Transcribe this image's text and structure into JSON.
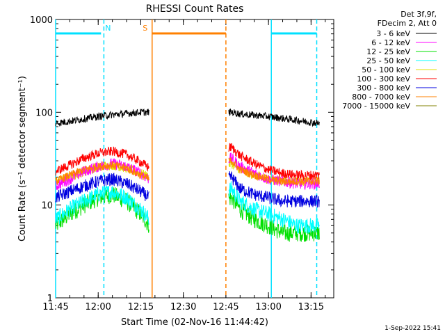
{
  "chart_data": {
    "type": "line",
    "title": "RHESSI Count Rates",
    "xlabel": "Start Time (02-Nov-16 11:44:42)",
    "ylabel": "Count Rate (s⁻¹ detector segment⁻¹)",
    "yscale": "log",
    "ylim": [
      1,
      1000
    ],
    "xlim": [
      "11:45",
      "13:23"
    ],
    "x_ticks": [
      "11:45",
      "12:00",
      "12:15",
      "12:30",
      "12:45",
      "13:00",
      "13:15"
    ],
    "y_ticks": [
      "1",
      "10",
      "100",
      "1000"
    ],
    "legend_header": [
      "Det 3f,9f,",
      "FDecim 2, Att 0"
    ],
    "legend_position": "top-right outside",
    "timestamp": "1-Sep-2022 15:41",
    "data_gap": [
      "12:19",
      "12:46"
    ],
    "series": [
      {
        "name": "3 - 6 keV",
        "color": "#000000",
        "x": [
          "11:45",
          "11:50",
          "11:55",
          "12:00",
          "12:05",
          "12:10",
          "12:15",
          "12:18",
          "12:47",
          "12:50",
          "12:55",
          "13:00",
          "13:05",
          "13:10",
          "13:15",
          "13:18"
        ],
        "values": [
          76,
          80,
          85,
          90,
          94,
          97,
          100,
          100,
          100,
          96,
          93,
          90,
          86,
          82,
          78,
          76
        ]
      },
      {
        "name": "6 - 12 keV",
        "color": "#ff00ff",
        "x": [
          "11:45",
          "11:50",
          "11:55",
          "12:00",
          "12:05",
          "12:10",
          "12:15",
          "12:18",
          "12:47",
          "12:50",
          "12:55",
          "13:00",
          "13:05",
          "13:10",
          "13:15",
          "13:18"
        ],
        "values": [
          16,
          19,
          23,
          26,
          28,
          26,
          22,
          19,
          32,
          26,
          22,
          19,
          18,
          17,
          17,
          17
        ]
      },
      {
        "name": "12 - 25 keV",
        "color": "#00e000",
        "x": [
          "11:45",
          "11:50",
          "11:55",
          "12:00",
          "12:05",
          "12:10",
          "12:15",
          "12:18",
          "12:47",
          "12:50",
          "12:55",
          "13:00",
          "13:05",
          "13:10",
          "13:15",
          "13:18"
        ],
        "values": [
          6,
          8,
          10,
          12,
          13,
          11,
          8,
          6,
          12,
          9,
          7,
          6,
          5,
          5,
          5,
          5
        ]
      },
      {
        "name": "25 - 50 keV",
        "color": "#00ffff",
        "x": [
          "11:45",
          "11:50",
          "11:55",
          "12:00",
          "12:05",
          "12:10",
          "12:15",
          "12:18",
          "12:47",
          "12:50",
          "12:55",
          "13:00",
          "13:05",
          "13:10",
          "13:15",
          "13:18"
        ],
        "values": [
          7,
          9,
          11,
          13,
          14,
          12,
          9,
          7,
          15,
          11,
          9,
          8,
          7,
          6,
          6,
          6
        ]
      },
      {
        "name": "50 - 100 keV",
        "color": "#e0e000",
        "x": [
          "11:45",
          "11:50",
          "11:55",
          "12:00",
          "12:05",
          "12:10",
          "12:15",
          "12:18",
          "12:47",
          "12:50",
          "12:55",
          "13:00",
          "13:05",
          "13:10",
          "13:15",
          "13:18"
        ],
        "values": [
          18,
          20,
          23,
          26,
          27,
          25,
          22,
          20,
          28,
          24,
          21,
          19,
          18,
          18,
          18,
          18
        ]
      },
      {
        "name": "100 - 300 keV",
        "color": "#ff0000",
        "x": [
          "11:45",
          "11:50",
          "11:55",
          "12:00",
          "12:05",
          "12:10",
          "12:15",
          "12:18",
          "12:47",
          "12:50",
          "12:55",
          "13:00",
          "13:05",
          "13:10",
          "13:15",
          "13:18"
        ],
        "values": [
          23,
          27,
          32,
          36,
          38,
          35,
          29,
          25,
          42,
          34,
          28,
          24,
          22,
          21,
          21,
          21
        ]
      },
      {
        "name": "300 - 800 keV",
        "color": "#0000e0",
        "x": [
          "11:45",
          "11:50",
          "11:55",
          "12:00",
          "12:05",
          "12:10",
          "12:15",
          "12:18",
          "12:47",
          "12:50",
          "12:55",
          "13:00",
          "13:05",
          "13:10",
          "13:15",
          "13:18"
        ],
        "values": [
          12,
          14,
          16,
          18,
          19,
          17,
          14,
          12,
          20,
          15,
          13,
          12,
          11,
          11,
          11,
          11
        ]
      },
      {
        "name": "800 - 7000 keV",
        "color": "#ff8000",
        "x": [
          "11:45",
          "11:50",
          "11:55",
          "12:00",
          "12:05",
          "12:10",
          "12:15",
          "12:18",
          "12:47",
          "12:50",
          "12:55",
          "13:00",
          "13:05",
          "13:10",
          "13:15",
          "13:18"
        ],
        "values": [
          18,
          21,
          24,
          26,
          27,
          25,
          21,
          19,
          30,
          24,
          21,
          19,
          18,
          18,
          18,
          18
        ]
      },
      {
        "name": "7000 - 15000 keV",
        "color": "#808000",
        "x": [],
        "values": []
      }
    ],
    "markers": [
      {
        "label": "N",
        "color": "#00e0ff",
        "bar": [
          "11:45",
          "12:01"
        ],
        "solid_at": [
          "11:45",
          "13:01"
        ],
        "dashed_at": [
          "12:02",
          "13:17"
        ]
      },
      {
        "label": "",
        "color": "#00e0ff",
        "bar": [
          "13:01",
          "13:17"
        ],
        "solid_at": [],
        "dashed_at": []
      },
      {
        "label": "S",
        "color": "#ff8000",
        "bar": [
          "12:19",
          "12:45"
        ],
        "solid_at": [
          "12:19"
        ],
        "dashed_at": [
          "12:45"
        ]
      }
    ]
  }
}
